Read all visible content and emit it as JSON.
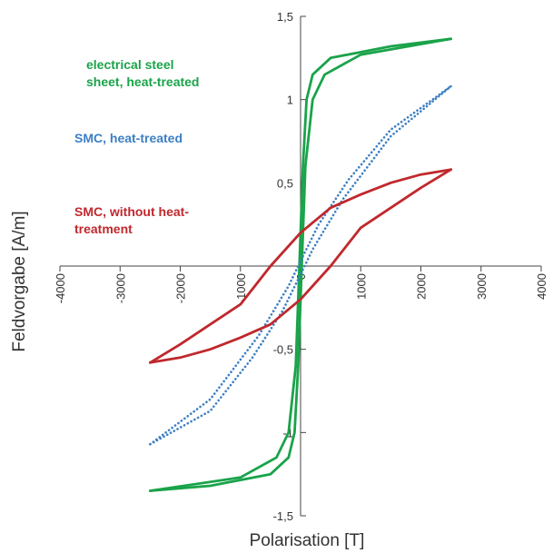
{
  "chart_data": {
    "type": "line",
    "xlabel": "Polarisation [T]",
    "ylabel": "Feldvorgabe [A/m]",
    "xlim": [
      -4000,
      4000
    ],
    "ylim": [
      -1.5,
      1.5
    ],
    "x_ticks": [
      "-4000",
      "-3000",
      "-2000",
      "-1000",
      "0",
      "1000",
      "2000",
      "3000",
      "4000"
    ],
    "y_ticks": [
      "-1,5",
      "-1",
      "-0,5",
      "0,5",
      "1",
      "1,5"
    ],
    "grid": false,
    "series": [
      {
        "name": "electrical steel sheet, heat-treated",
        "color": "#1aa34a",
        "dash": "solid",
        "upper": [
          [
            -2500,
            -1.35
          ],
          [
            -1000,
            -1.27
          ],
          [
            -400,
            -1.15
          ],
          [
            -200,
            -1.0
          ],
          [
            -80,
            -0.6
          ],
          [
            -20,
            0.0
          ],
          [
            40,
            0.6
          ],
          [
            100,
            1.0
          ],
          [
            200,
            1.15
          ],
          [
            500,
            1.25
          ],
          [
            1500,
            1.32
          ],
          [
            2500,
            1.365
          ]
        ],
        "lower": [
          [
            -2500,
            -1.35
          ],
          [
            -1500,
            -1.32
          ],
          [
            -500,
            -1.25
          ],
          [
            -200,
            -1.15
          ],
          [
            -100,
            -1.0
          ],
          [
            -40,
            -0.6
          ],
          [
            20,
            0.0
          ],
          [
            80,
            0.6
          ],
          [
            200,
            1.0
          ],
          [
            400,
            1.15
          ],
          [
            1000,
            1.27
          ],
          [
            2500,
            1.365
          ]
        ]
      },
      {
        "name": "SMC, heat-treated",
        "color": "#3c7fc4",
        "dash": "dotted",
        "upper": [
          [
            -2500,
            -1.07
          ],
          [
            -1500,
            -0.8
          ],
          [
            -700,
            -0.42
          ],
          [
            -200,
            -0.12
          ],
          [
            0,
            0.03
          ],
          [
            300,
            0.25
          ],
          [
            800,
            0.52
          ],
          [
            1500,
            0.82
          ],
          [
            2500,
            1.08
          ]
        ],
        "lower": [
          [
            -2500,
            -1.07
          ],
          [
            -1500,
            -0.87
          ],
          [
            -800,
            -0.55
          ],
          [
            -300,
            -0.27
          ],
          [
            0,
            -0.05
          ],
          [
            200,
            0.1
          ],
          [
            700,
            0.4
          ],
          [
            1500,
            0.78
          ],
          [
            2500,
            1.08
          ]
        ]
      },
      {
        "name": "SMC, without heat-treatment",
        "color": "#c0282d",
        "dash": "solid",
        "upper": [
          [
            -2500,
            -0.58
          ],
          [
            -2000,
            -0.47
          ],
          [
            -1500,
            -0.35
          ],
          [
            -1000,
            -0.23
          ],
          [
            -500,
            0.0
          ],
          [
            0,
            0.2
          ],
          [
            500,
            0.35
          ],
          [
            1000,
            0.43
          ],
          [
            1500,
            0.5
          ],
          [
            2000,
            0.55
          ],
          [
            2500,
            0.58
          ]
        ],
        "lower": [
          [
            -2500,
            -0.58
          ],
          [
            -2000,
            -0.55
          ],
          [
            -1500,
            -0.5
          ],
          [
            -1000,
            -0.43
          ],
          [
            -500,
            -0.35
          ],
          [
            0,
            -0.2
          ],
          [
            500,
            0.0
          ],
          [
            1000,
            0.23
          ],
          [
            1500,
            0.35
          ],
          [
            2000,
            0.47
          ],
          [
            2500,
            0.58
          ]
        ]
      }
    ],
    "annotations": [
      {
        "lines": [
          "electrical steel",
          "sheet, heat-treated"
        ],
        "color": "#1aa34a"
      },
      {
        "lines": [
          "SMC, heat-treated"
        ],
        "color": "#3c7fc4"
      },
      {
        "lines": [
          "SMC, without heat-",
          "treatment"
        ],
        "color": "#c0282d"
      }
    ]
  }
}
